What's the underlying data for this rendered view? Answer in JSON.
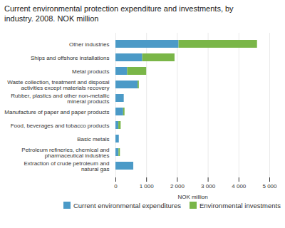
{
  "chart_data": {
    "type": "bar",
    "title": "Current environmental protection expenditure and investments, by\nindustry. 2008. NOK million",
    "orientation": "horizontal",
    "stacked": true,
    "categories": [
      "Other industries",
      "Ships and offshore installations",
      "Metal products",
      "Waste collection, treatment and disposal\nactivities except materials recovery",
      "Rubber, plastics and other non-metallic\nmineral products",
      "Manufacture of paper and paper products",
      "Food, beverages and tobacco products",
      "Basic metals",
      "Petroleum refineries, chemical and\npharmaceutical industries",
      "Extraction of crude petroleum and\nnatural gas"
    ],
    "series": [
      {
        "name": "Current environmental expenditures",
        "color": "#4B9AC7",
        "values": [
          2050,
          870,
          380,
          720,
          270,
          250,
          95,
          110,
          100,
          580
        ]
      },
      {
        "name": "Environmental investments",
        "color": "#7AB648",
        "values": [
          2550,
          1050,
          620,
          40,
          0,
          45,
          75,
          0,
          45,
          0
        ]
      }
    ],
    "xlabel": "NOK million",
    "xlim": [
      0,
      5000
    ],
    "xticks": [
      0,
      {
        "value": 1000,
        "label": "1 000"
      },
      {
        "value": 2000,
        "label": "2 000"
      },
      {
        "value": 3000,
        "label": "3 000"
      },
      {
        "value": 4000,
        "label": "4 000"
      },
      {
        "value": 5000,
        "label": "5 000"
      }
    ],
    "grid": true,
    "legend": "lower right"
  }
}
